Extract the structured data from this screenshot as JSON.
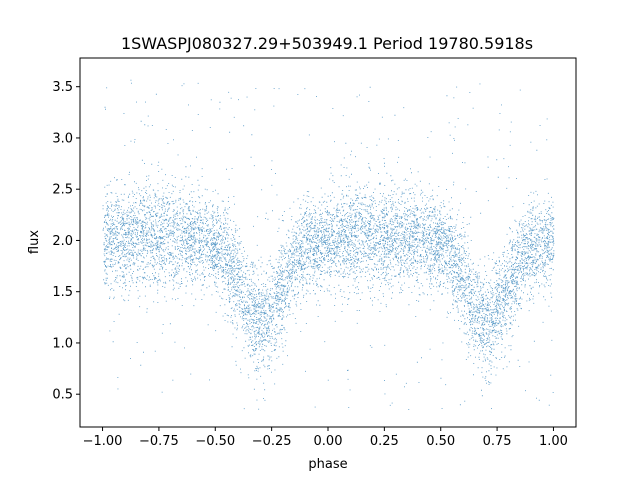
{
  "chart_data": {
    "type": "scatter",
    "title": "1SWASPJ080327.29+503949.1 Period 19780.5918s",
    "xlabel": "phase",
    "ylabel": "flux",
    "xlim": [
      -1.1,
      1.1
    ],
    "ylim": [
      0.18,
      3.78
    ],
    "x_ticks": [
      -1.0,
      -0.75,
      -0.5,
      -0.25,
      0.0,
      0.25,
      0.5,
      0.75,
      1.0
    ],
    "x_tick_labels": [
      "−1.00",
      "−0.75",
      "−0.50",
      "−0.25",
      "0.00",
      "0.25",
      "0.50",
      "0.75",
      "1.00"
    ],
    "y_ticks": [
      0.5,
      1.0,
      1.5,
      2.0,
      2.5,
      3.0,
      3.5
    ],
    "y_tick_labels": [
      "0.5",
      "1.0",
      "1.5",
      "2.0",
      "2.5",
      "3.0",
      "3.5"
    ],
    "grid": false,
    "legend": "none",
    "marker_color": "#1f77b4",
    "series": [
      {
        "x_range": [
          -1.0,
          1.0
        ],
        "baseline_flux": 2.0,
        "band_halfwidth": 0.28,
        "dips": [
          {
            "phase": -0.3,
            "min_flux": 1.25
          },
          {
            "phase": 0.7,
            "min_flux": 1.25
          }
        ],
        "outlier_range": [
          0.35,
          3.6
        ]
      }
    ]
  }
}
